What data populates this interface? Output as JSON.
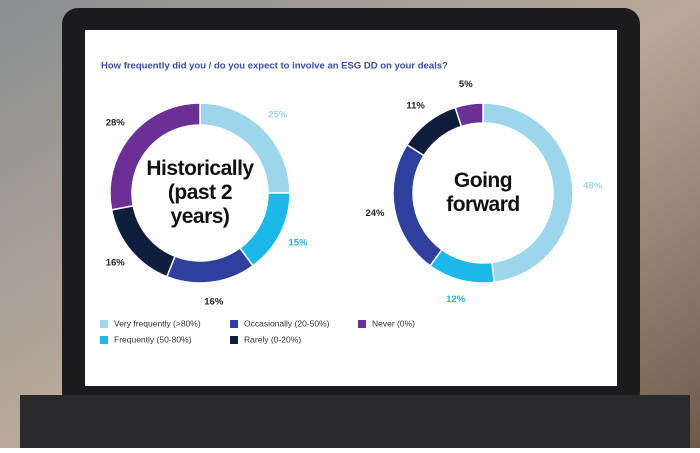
{
  "chart_data": {
    "type": "pie",
    "title": "How frequently did you / do you expect to involve an ESG DD on your deals?",
    "categories": [
      "Very frequently (>80%)",
      "Frequently (50-80%)",
      "Occasionally (20-50%)",
      "Rarely (0-20%)",
      "Never (0%)"
    ],
    "colors": [
      "#9dd6ea",
      "#1bb8e8",
      "#2e3f9e",
      "#0f1e3c",
      "#6b2f96"
    ],
    "series": [
      {
        "name": "Historically (past 2 years)",
        "values": [
          25,
          15,
          16,
          16,
          28
        ],
        "value_labels": [
          "25%",
          "15%",
          "16%",
          "16%",
          "28%"
        ]
      },
      {
        "name": "Going forward",
        "values": [
          48,
          12,
          24,
          11,
          5
        ],
        "value_labels": [
          "48%",
          "12%",
          "24%",
          "11%",
          "5%"
        ]
      }
    ]
  }
}
